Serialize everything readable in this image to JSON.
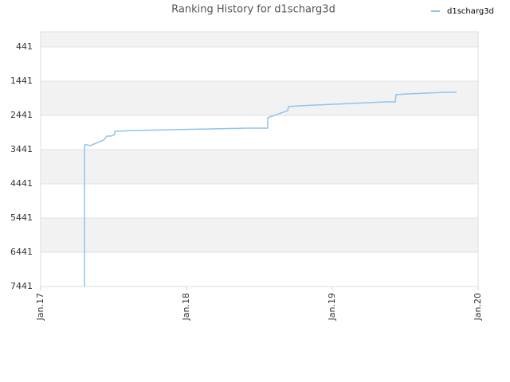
{
  "chart_data": {
    "type": "line",
    "title": "Ranking History for d1scharg3d",
    "x": [
      2017.301,
      2017.301,
      2017.317,
      2017.339,
      2017.366,
      2017.432,
      2017.454,
      2017.481,
      2017.508,
      2017.508,
      2017.639,
      2017.896,
      2018.164,
      2018.426,
      2018.557,
      2018.557,
      2018.694,
      2018.699,
      2018.77,
      2018.885,
      2019.005,
      2019.131,
      2019.246,
      2019.366,
      2019.432,
      2019.437,
      2019.514,
      2019.645,
      2019.776,
      2019.852
    ],
    "series": [
      {
        "name": "d1scharg3d",
        "color": "#90c4ee",
        "values": [
          7441,
          3302,
          3302,
          3325,
          3278,
          3162,
          3046,
          3046,
          2999,
          2906,
          2883,
          2860,
          2836,
          2813,
          2813,
          2511,
          2301,
          2185,
          2162,
          2139,
          2115,
          2092,
          2069,
          2046,
          2046,
          1836,
          1813,
          1790,
          1767,
          1767
        ]
      }
    ],
    "xlim": [
      2017,
      2020
    ],
    "xticks": [
      {
        "value": 2017,
        "label": "Jan.17"
      },
      {
        "value": 2018,
        "label": "Jan.18"
      },
      {
        "value": 2019,
        "label": "Jan.19"
      },
      {
        "value": 2020,
        "label": "Jan.20"
      }
    ],
    "ylim": [
      7441,
      -1
    ],
    "yticks": [
      441,
      1441,
      2441,
      3441,
      4441,
      5441,
      6441,
      7441
    ],
    "grid": true,
    "legend": "top-right"
  }
}
